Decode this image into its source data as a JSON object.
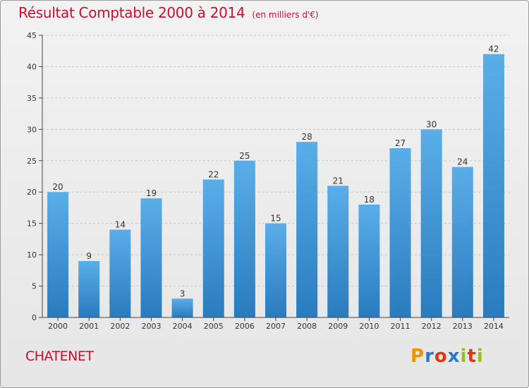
{
  "title": "Résultat Comptable 2000 à 2014",
  "unit": "(en milliers d'€)",
  "place": "CHATENET",
  "logo": "Proxiti",
  "logo_colors": [
    "#f39200",
    "#2a7ac0",
    "#e63312",
    "#2a7ac0",
    "#95c11f",
    "#e63312",
    "#95c11f"
  ],
  "colors": {
    "title": "#c8102e",
    "bar_top": "#5aaee8",
    "bar_bottom": "#2a7bbe",
    "grid": "#c8c8c8",
    "axis": "#444444"
  },
  "chart_data": {
    "type": "bar",
    "categories": [
      "2000",
      "2001",
      "2002",
      "2003",
      "2004",
      "2005",
      "2006",
      "2007",
      "2008",
      "2009",
      "2010",
      "2011",
      "2012",
      "2013",
      "2014"
    ],
    "values": [
      20,
      9,
      14,
      19,
      3,
      22,
      25,
      15,
      28,
      21,
      18,
      27,
      30,
      24,
      42
    ],
    "ylim": [
      0,
      45
    ],
    "yticks": [
      0,
      5,
      10,
      15,
      20,
      25,
      30,
      35,
      40,
      45
    ],
    "grid": "horizontal dashed",
    "data_labels": true
  }
}
